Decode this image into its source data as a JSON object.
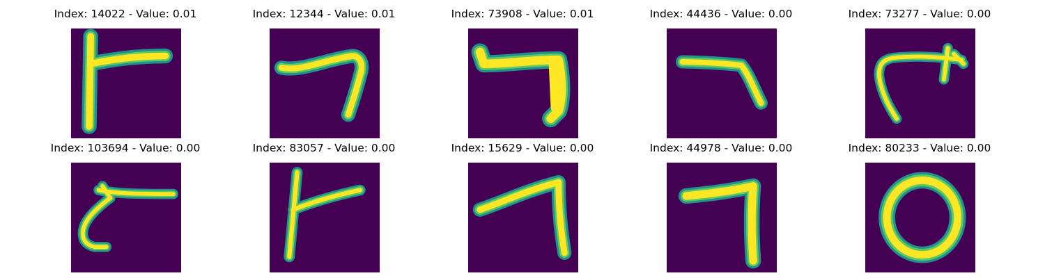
{
  "colors": {
    "background": "#440154",
    "stroke_edge": "#21918c",
    "stroke_mid": "#5ec962",
    "stroke_core": "#fde725"
  },
  "panels": [
    {
      "title": "Index: 14022 - Value: 0.01",
      "glyph": "vertical-with-right-bar"
    },
    {
      "title": "Index: 12344 - Value: 0.01",
      "glyph": "hook-seven"
    },
    {
      "title": "Index: 73908 - Value: 0.01",
      "glyph": "thick-seven"
    },
    {
      "title": "Index: 44436 - Value: 0.00",
      "glyph": "bent-seven"
    },
    {
      "title": "Index: 73277 - Value: 0.00",
      "glyph": "arrow-hook"
    },
    {
      "title": "Index: 103694 - Value: 0.00",
      "glyph": "c-with-bar"
    },
    {
      "title": "Index: 83057 - Value: 0.00",
      "glyph": "vertical-with-right-bar"
    },
    {
      "title": "Index: 15629 - Value: 0.00",
      "glyph": "slanted-seven"
    },
    {
      "title": "Index: 44978 - Value: 0.00",
      "glyph": "thick-seven"
    },
    {
      "title": "Index: 80233 - Value: 0.00",
      "glyph": "zero-loop"
    }
  ]
}
